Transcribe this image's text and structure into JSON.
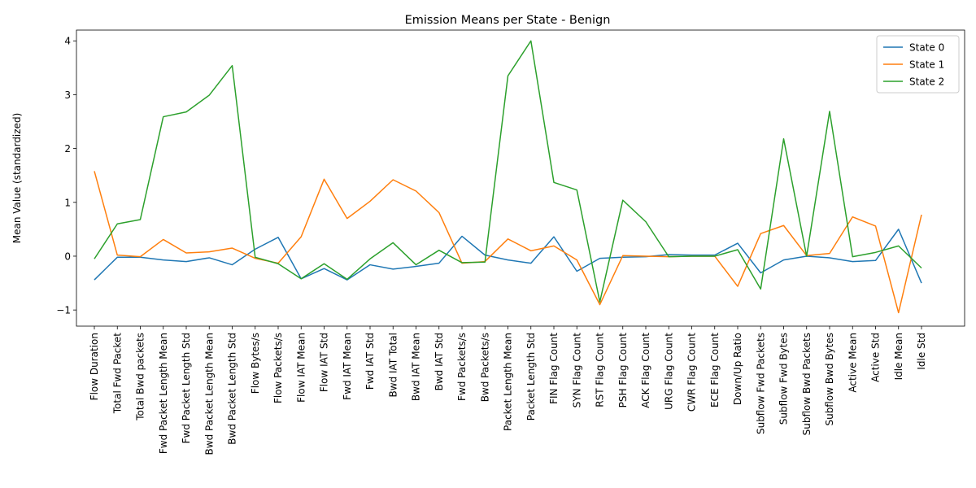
{
  "chart_data": {
    "type": "line",
    "title": "Emission Means per State - Benign",
    "xlabel": "",
    "ylabel": "Mean Value (standardized)",
    "ylim": [
      -1.3,
      4.2
    ],
    "yticks": [
      -1,
      0,
      1,
      2,
      3,
      4
    ],
    "grid": false,
    "legend_position": "top-right",
    "categories": [
      "Flow Duration",
      "Total Fwd Packet",
      "Total Bwd packets",
      "Fwd Packet Length Mean",
      "Fwd Packet Length Std",
      "Bwd Packet Length Mean",
      "Bwd Packet Length Std",
      "Flow Bytes/s",
      "Flow Packets/s",
      "Flow IAT Mean",
      "Flow IAT Std",
      "Fwd IAT Mean",
      "Fwd IAT Std",
      "Bwd IAT Total",
      "Bwd IAT Mean",
      "Bwd IAT Std",
      "Fwd Packets/s",
      "Bwd Packets/s",
      "Packet Length Mean",
      "Packet Length Std",
      "FIN Flag Count",
      "SYN Flag Count",
      "RST Flag Count",
      "PSH Flag Count",
      "ACK Flag Count",
      "URG Flag Count",
      "CWR Flag Count",
      "ECE Flag Count",
      "Down/Up Ratio",
      "Subflow Fwd Packets",
      "Subflow Fwd Bytes",
      "Subflow Bwd Packets",
      "Subflow Bwd Bytes",
      "Active Mean",
      "Active Std",
      "Idle Mean",
      "Idle Std"
    ],
    "series": [
      {
        "name": "State 0",
        "color": "#1f77b4",
        "values": [
          -0.44,
          -0.02,
          -0.02,
          -0.07,
          -0.1,
          -0.03,
          -0.16,
          0.13,
          0.35,
          -0.42,
          -0.23,
          -0.44,
          -0.16,
          -0.24,
          -0.19,
          -0.13,
          0.37,
          0.02,
          -0.07,
          -0.13,
          0.36,
          -0.28,
          -0.04,
          -0.02,
          -0.01,
          0.03,
          0.02,
          0.02,
          0.24,
          -0.31,
          -0.07,
          0.0,
          -0.03,
          -0.1,
          -0.08,
          0.5,
          -0.5
        ]
      },
      {
        "name": "State 1",
        "color": "#ff7f0e",
        "values": [
          1.58,
          0.02,
          -0.01,
          0.31,
          0.06,
          0.08,
          0.15,
          -0.04,
          -0.13,
          0.36,
          1.43,
          0.7,
          1.02,
          1.42,
          1.21,
          0.81,
          -0.13,
          -0.1,
          0.32,
          0.1,
          0.19,
          -0.07,
          -0.9,
          0.01,
          0.0,
          -0.01,
          0.0,
          0.0,
          -0.56,
          0.42,
          0.57,
          0.01,
          0.05,
          0.73,
          0.56,
          -1.05,
          0.77
        ]
      },
      {
        "name": "State 2",
        "color": "#2ca02c",
        "values": [
          -0.05,
          0.6,
          0.68,
          2.59,
          2.68,
          2.99,
          3.54,
          -0.02,
          -0.14,
          -0.42,
          -0.14,
          -0.43,
          -0.05,
          0.25,
          -0.16,
          0.11,
          -0.12,
          -0.11,
          3.35,
          4.0,
          1.37,
          1.23,
          -0.85,
          1.04,
          0.64,
          -0.01,
          0.0,
          0.0,
          0.12,
          -0.61,
          2.18,
          0.0,
          2.69,
          -0.01,
          0.07,
          0.19,
          -0.22
        ]
      }
    ]
  }
}
